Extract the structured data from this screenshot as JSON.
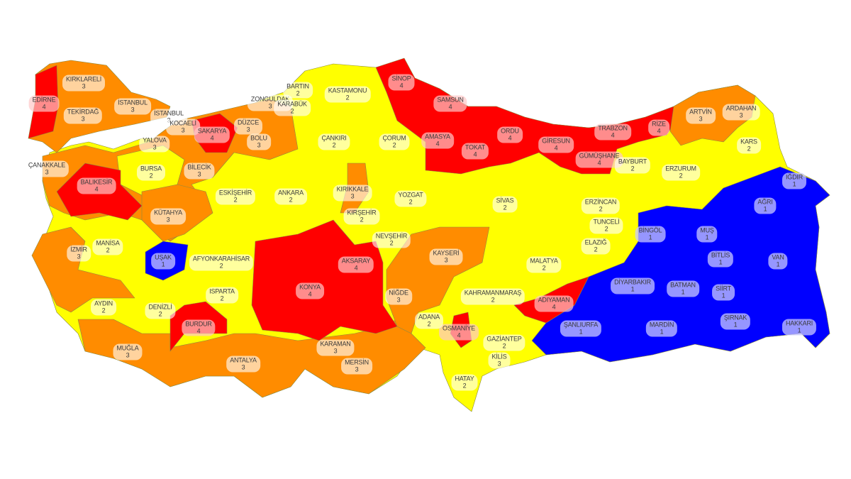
{
  "risk_colors": {
    "1": "#0000ff",
    "2": "#ffff00",
    "3": "#ff8c00",
    "4": "#ff0000"
  },
  "provinces": [
    {
      "name": "EDİRNE",
      "value": "4"
    },
    {
      "name": "KIRKLARELİ",
      "value": "3"
    },
    {
      "name": "TEKİRDAĞ",
      "value": "3"
    },
    {
      "name": "İSTANBUL",
      "value": "3"
    },
    {
      "name": "İSTANBUL",
      "value": "3"
    },
    {
      "name": "KOCAELİ",
      "value": "3"
    },
    {
      "name": "SAKARYA",
      "value": "4"
    },
    {
      "name": "YALOVA",
      "value": "3"
    },
    {
      "name": "DÜZCE",
      "value": "3"
    },
    {
      "name": "BOLU",
      "value": "3"
    },
    {
      "name": "ZONGULDAK",
      "value": "3"
    },
    {
      "name": "BARTIN",
      "value": "2"
    },
    {
      "name": "KARABÜK",
      "value": "2"
    },
    {
      "name": "KASTAMONU",
      "value": "2"
    },
    {
      "name": "SİNOP",
      "value": "4"
    },
    {
      "name": "SAMSUN",
      "value": "4"
    },
    {
      "name": "AMASYA",
      "value": "4"
    },
    {
      "name": "TOKAT",
      "value": "4"
    },
    {
      "name": "ORDU",
      "value": "4"
    },
    {
      "name": "GİRESUN",
      "value": "4"
    },
    {
      "name": "GÜMÜŞHANE",
      "value": "4"
    },
    {
      "name": "TRABZON",
      "value": "4"
    },
    {
      "name": "RİZE",
      "value": "4"
    },
    {
      "name": "ARTVİN",
      "value": "3"
    },
    {
      "name": "ARDAHAN",
      "value": "3"
    },
    {
      "name": "KARS",
      "value": "2"
    },
    {
      "name": "BAYBURT",
      "value": "2"
    },
    {
      "name": "ERZURUM",
      "value": "2"
    },
    {
      "name": "IĞDIR",
      "value": "1"
    },
    {
      "name": "AĞRI",
      "value": "1"
    },
    {
      "name": "ERZİNCAN",
      "value": "2"
    },
    {
      "name": "TUNCELİ",
      "value": "2"
    },
    {
      "name": "BİNGÖL",
      "value": "1"
    },
    {
      "name": "MUŞ",
      "value": "1"
    },
    {
      "name": "ELAZIĞ",
      "value": "2"
    },
    {
      "name": "BİTLİS",
      "value": "1"
    },
    {
      "name": "VAN",
      "value": "1"
    },
    {
      "name": "MALATYA",
      "value": "2"
    },
    {
      "name": "DİYARBAKIR",
      "value": "1"
    },
    {
      "name": "BATMAN",
      "value": "1"
    },
    {
      "name": "SİİRT",
      "value": "1"
    },
    {
      "name": "ŞIRNAK",
      "value": "1"
    },
    {
      "name": "HAKKARİ",
      "value": "1"
    },
    {
      "name": "ŞANLIURFA",
      "value": "1"
    },
    {
      "name": "MARDİN",
      "value": "1"
    },
    {
      "name": "ADIYAMAN",
      "value": "4"
    },
    {
      "name": "KAHRAMANMARAŞ",
      "value": "2"
    },
    {
      "name": "GAZİANTEP",
      "value": "2"
    },
    {
      "name": "KİLİS",
      "value": "3"
    },
    {
      "name": "OSMANİYE",
      "value": "4"
    },
    {
      "name": "ADANA",
      "value": "2"
    },
    {
      "name": "HATAY",
      "value": "2"
    },
    {
      "name": "KAYSERİ",
      "value": "3"
    },
    {
      "name": "NİĞDE",
      "value": "3"
    },
    {
      "name": "NEVŞEHİR",
      "value": "2"
    },
    {
      "name": "AKSARAY",
      "value": "4"
    },
    {
      "name": "KIRŞEHİR",
      "value": "2"
    },
    {
      "name": "KIRIKKALE",
      "value": "3"
    },
    {
      "name": "YOZGAT",
      "value": "2"
    },
    {
      "name": "SİVAS",
      "value": "2"
    },
    {
      "name": "ÇORUM",
      "value": "2"
    },
    {
      "name": "ÇANKIRI",
      "value": "2"
    },
    {
      "name": "ANKARA",
      "value": "2"
    },
    {
      "name": "ESKİŞEHİR",
      "value": "2"
    },
    {
      "name": "BİLECİK",
      "value": "3"
    },
    {
      "name": "BURSA",
      "value": "2"
    },
    {
      "name": "ÇANAKKALE",
      "value": "3"
    },
    {
      "name": "BALIKESİR",
      "value": "4"
    },
    {
      "name": "KÜTAHYA",
      "value": "3"
    },
    {
      "name": "MANİSA",
      "value": "2"
    },
    {
      "name": "İZMİR",
      "value": "3"
    },
    {
      "name": "UŞAK",
      "value": "1"
    },
    {
      "name": "AFYONKARAHİSAR",
      "value": "2"
    },
    {
      "name": "AYDIN",
      "value": "2"
    },
    {
      "name": "DENİZLİ",
      "value": "2"
    },
    {
      "name": "ISPARTA",
      "value": "2"
    },
    {
      "name": "KONYA",
      "value": "4"
    },
    {
      "name": "BURDUR",
      "value": "4"
    },
    {
      "name": "MUĞLA",
      "value": "3"
    },
    {
      "name": "ANTALYA",
      "value": "3"
    },
    {
      "name": "KARAMAN",
      "value": "3"
    },
    {
      "name": "MERSİN",
      "value": "3"
    }
  ]
}
